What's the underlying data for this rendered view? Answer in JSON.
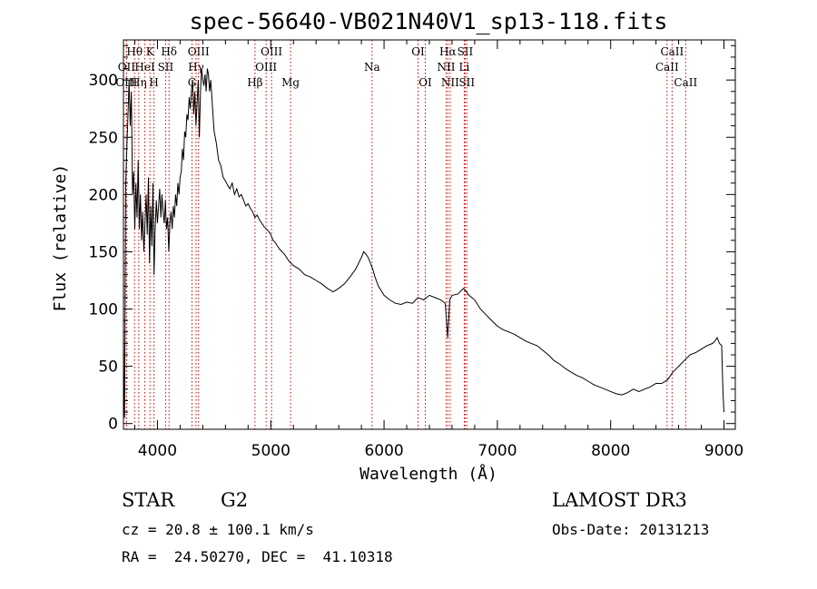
{
  "chart_data": {
    "type": "line",
    "title": "spec-56640-VB021N40V1_sp13-118.fits",
    "xlabel": "Wavelength (Å)",
    "ylabel": "Flux (relative)",
    "xlim": [
      3700,
      9100
    ],
    "ylim": [
      -5,
      335
    ],
    "xticks": [
      4000,
      5000,
      6000,
      7000,
      8000,
      9000
    ],
    "yticks": [
      0,
      50,
      100,
      150,
      200,
      250,
      300
    ],
    "x_minor_step": 200,
    "y_minor_step": 10,
    "grid": false,
    "series": [
      {
        "name": "Flux",
        "color": "#000000",
        "points": [
          [
            3700,
            80
          ],
          [
            3705,
            20
          ],
          [
            3710,
            5
          ],
          [
            3715,
            120
          ],
          [
            3720,
            210
          ],
          [
            3730,
            240
          ],
          [
            3740,
            270
          ],
          [
            3750,
            300
          ],
          [
            3760,
            260
          ],
          [
            3770,
            290
          ],
          [
            3780,
            200
          ],
          [
            3790,
            220
          ],
          [
            3800,
            170
          ],
          [
            3810,
            210
          ],
          [
            3820,
            180
          ],
          [
            3830,
            230
          ],
          [
            3840,
            170
          ],
          [
            3850,
            200
          ],
          [
            3860,
            160
          ],
          [
            3870,
            185
          ],
          [
            3880,
            150
          ],
          [
            3890,
            175
          ],
          [
            3900,
            200
          ],
          [
            3910,
            165
          ],
          [
            3920,
            215
          ],
          [
            3930,
            140
          ],
          [
            3940,
            190
          ],
          [
            3950,
            155
          ],
          [
            3960,
            210
          ],
          [
            3970,
            130
          ],
          [
            3980,
            170
          ],
          [
            3990,
            195
          ],
          [
            4000,
            175
          ],
          [
            4010,
            190
          ],
          [
            4020,
            205
          ],
          [
            4030,
            180
          ],
          [
            4040,
            200
          ],
          [
            4050,
            185
          ],
          [
            4060,
            175
          ],
          [
            4070,
            195
          ],
          [
            4080,
            170
          ],
          [
            4090,
            180
          ],
          [
            4100,
            150
          ],
          [
            4110,
            175
          ],
          [
            4120,
            185
          ],
          [
            4130,
            170
          ],
          [
            4140,
            190
          ],
          [
            4150,
            180
          ],
          [
            4160,
            200
          ],
          [
            4170,
            190
          ],
          [
            4180,
            210
          ],
          [
            4190,
            200
          ],
          [
            4200,
            215
          ],
          [
            4210,
            220
          ],
          [
            4220,
            240
          ],
          [
            4230,
            230
          ],
          [
            4240,
            255
          ],
          [
            4250,
            250
          ],
          [
            4260,
            270
          ],
          [
            4270,
            265
          ],
          [
            4280,
            285
          ],
          [
            4290,
            275
          ],
          [
            4300,
            290
          ],
          [
            4310,
            300
          ],
          [
            4320,
            270
          ],
          [
            4330,
            290
          ],
          [
            4340,
            260
          ],
          [
            4350,
            280
          ],
          [
            4360,
            300
          ],
          [
            4370,
            250
          ],
          [
            4380,
            290
          ],
          [
            4390,
            310
          ],
          [
            4400,
            300
          ],
          [
            4410,
            295
          ],
          [
            4420,
            305
          ],
          [
            4430,
            290
          ],
          [
            4440,
            310
          ],
          [
            4450,
            305
          ],
          [
            4460,
            290
          ],
          [
            4470,
            300
          ],
          [
            4480,
            285
          ],
          [
            4490,
            270
          ],
          [
            4500,
            255
          ],
          [
            4520,
            245
          ],
          [
            4540,
            230
          ],
          [
            4560,
            225
          ],
          [
            4580,
            215
          ],
          [
            4600,
            212
          ],
          [
            4620,
            208
          ],
          [
            4640,
            205
          ],
          [
            4660,
            210
          ],
          [
            4680,
            200
          ],
          [
            4700,
            205
          ],
          [
            4720,
            198
          ],
          [
            4740,
            200
          ],
          [
            4760,
            195
          ],
          [
            4780,
            190
          ],
          [
            4800,
            192
          ],
          [
            4820,
            188
          ],
          [
            4840,
            185
          ],
          [
            4860,
            180
          ],
          [
            4880,
            182
          ],
          [
            4900,
            178
          ],
          [
            4920,
            175
          ],
          [
            4940,
            172
          ],
          [
            4960,
            170
          ],
          [
            4980,
            168
          ],
          [
            5000,
            165
          ],
          [
            5020,
            160
          ],
          [
            5040,
            158
          ],
          [
            5060,
            155
          ],
          [
            5080,
            152
          ],
          [
            5100,
            150
          ],
          [
            5120,
            148
          ],
          [
            5140,
            145
          ],
          [
            5160,
            142
          ],
          [
            5180,
            140
          ],
          [
            5200,
            138
          ],
          [
            5250,
            135
          ],
          [
            5300,
            130
          ],
          [
            5350,
            128
          ],
          [
            5400,
            125
          ],
          [
            5450,
            122
          ],
          [
            5500,
            118
          ],
          [
            5550,
            115
          ],
          [
            5600,
            118
          ],
          [
            5650,
            122
          ],
          [
            5700,
            128
          ],
          [
            5750,
            135
          ],
          [
            5800,
            145
          ],
          [
            5820,
            150
          ],
          [
            5840,
            148
          ],
          [
            5860,
            145
          ],
          [
            5880,
            140
          ],
          [
            5900,
            135
          ],
          [
            5920,
            128
          ],
          [
            5950,
            120
          ],
          [
            6000,
            112
          ],
          [
            6050,
            108
          ],
          [
            6100,
            105
          ],
          [
            6150,
            104
          ],
          [
            6200,
            106
          ],
          [
            6250,
            105
          ],
          [
            6300,
            110
          ],
          [
            6350,
            108
          ],
          [
            6400,
            112
          ],
          [
            6450,
            110
          ],
          [
            6500,
            108
          ],
          [
            6540,
            105
          ],
          [
            6562,
            75
          ],
          [
            6580,
            108
          ],
          [
            6600,
            112
          ],
          [
            6650,
            113
          ],
          [
            6700,
            118
          ],
          [
            6720,
            116
          ],
          [
            6750,
            112
          ],
          [
            6800,
            108
          ],
          [
            6850,
            100
          ],
          [
            6900,
            95
          ],
          [
            6950,
            90
          ],
          [
            7000,
            85
          ],
          [
            7050,
            82
          ],
          [
            7100,
            80
          ],
          [
            7150,
            78
          ],
          [
            7200,
            75
          ],
          [
            7250,
            72
          ],
          [
            7300,
            70
          ],
          [
            7350,
            68
          ],
          [
            7400,
            64
          ],
          [
            7450,
            60
          ],
          [
            7500,
            55
          ],
          [
            7550,
            52
          ],
          [
            7600,
            48
          ],
          [
            7650,
            45
          ],
          [
            7700,
            42
          ],
          [
            7750,
            40
          ],
          [
            7800,
            37
          ],
          [
            7850,
            34
          ],
          [
            7900,
            32
          ],
          [
            7950,
            30
          ],
          [
            8000,
            28
          ],
          [
            8050,
            26
          ],
          [
            8100,
            25
          ],
          [
            8150,
            27
          ],
          [
            8200,
            30
          ],
          [
            8250,
            28
          ],
          [
            8300,
            30
          ],
          [
            8350,
            32
          ],
          [
            8400,
            35
          ],
          [
            8450,
            35
          ],
          [
            8500,
            38
          ],
          [
            8550,
            45
          ],
          [
            8600,
            50
          ],
          [
            8650,
            55
          ],
          [
            8700,
            60
          ],
          [
            8750,
            62
          ],
          [
            8800,
            65
          ],
          [
            8850,
            68
          ],
          [
            8900,
            70
          ],
          [
            8920,
            72
          ],
          [
            8940,
            75
          ],
          [
            8960,
            70
          ],
          [
            8980,
            68
          ],
          [
            8990,
            30
          ],
          [
            9000,
            10
          ]
        ]
      }
    ],
    "lines": [
      {
        "label": "Hθ",
        "x": 3798,
        "row": 1
      },
      {
        "label": "OII",
        "x": 3727,
        "row": 2
      },
      {
        "label": "OIII",
        "x": 3727,
        "row": 3
      },
      {
        "label": "K",
        "x": 3934,
        "row": 1
      },
      {
        "label": "HeI",
        "x": 3889,
        "row": 2
      },
      {
        "label": "Hη",
        "x": 3835,
        "row": 3
      },
      {
        "label": "Hδ",
        "x": 4102,
        "row": 1
      },
      {
        "label": "SII",
        "x": 4072,
        "row": 2
      },
      {
        "label": "H",
        "x": 3969,
        "row": 3
      },
      {
        "label": "OIII",
        "x": 4363,
        "row": 1
      },
      {
        "label": "Hγ",
        "x": 4341,
        "row": 2
      },
      {
        "label": "G",
        "x": 4305,
        "row": 3
      },
      {
        "label": "OIII",
        "x": 5007,
        "row": 1
      },
      {
        "label": "OIII",
        "x": 4959,
        "row": 2
      },
      {
        "label": "Hβ",
        "x": 4861,
        "row": 3
      },
      {
        "label": "Mg",
        "x": 5175,
        "row": 3
      },
      {
        "label": "Na",
        "x": 5894,
        "row": 2
      },
      {
        "label": "OI",
        "x": 6300,
        "row": 1
      },
      {
        "label": "OI",
        "x": 6364,
        "row": 3
      },
      {
        "label": "Hα",
        "x": 6563,
        "row": 1
      },
      {
        "label": "NII",
        "x": 6548,
        "row": 2
      },
      {
        "label": "NII",
        "x": 6583,
        "row": 3
      },
      {
        "label": "SII",
        "x": 6716,
        "row": 1
      },
      {
        "label": "Li",
        "x": 6708,
        "row": 2
      },
      {
        "label": "SII",
        "x": 6731,
        "row": 3
      },
      {
        "label": "CaII",
        "x": 8542,
        "row": 1
      },
      {
        "label": "CaII",
        "x": 8498,
        "row": 2
      },
      {
        "label": "CaII",
        "x": 8662,
        "row": 3
      }
    ],
    "line_color": "#cc0000"
  },
  "info": {
    "object_class": "STAR",
    "subclass": "G2",
    "survey": "LAMOST DR3",
    "redshift": "cz = 20.8 ± 100.1 km/s",
    "obs_date": "Obs-Date: 20131213",
    "coords": "RA =  24.50270, DEC =  41.10318"
  }
}
